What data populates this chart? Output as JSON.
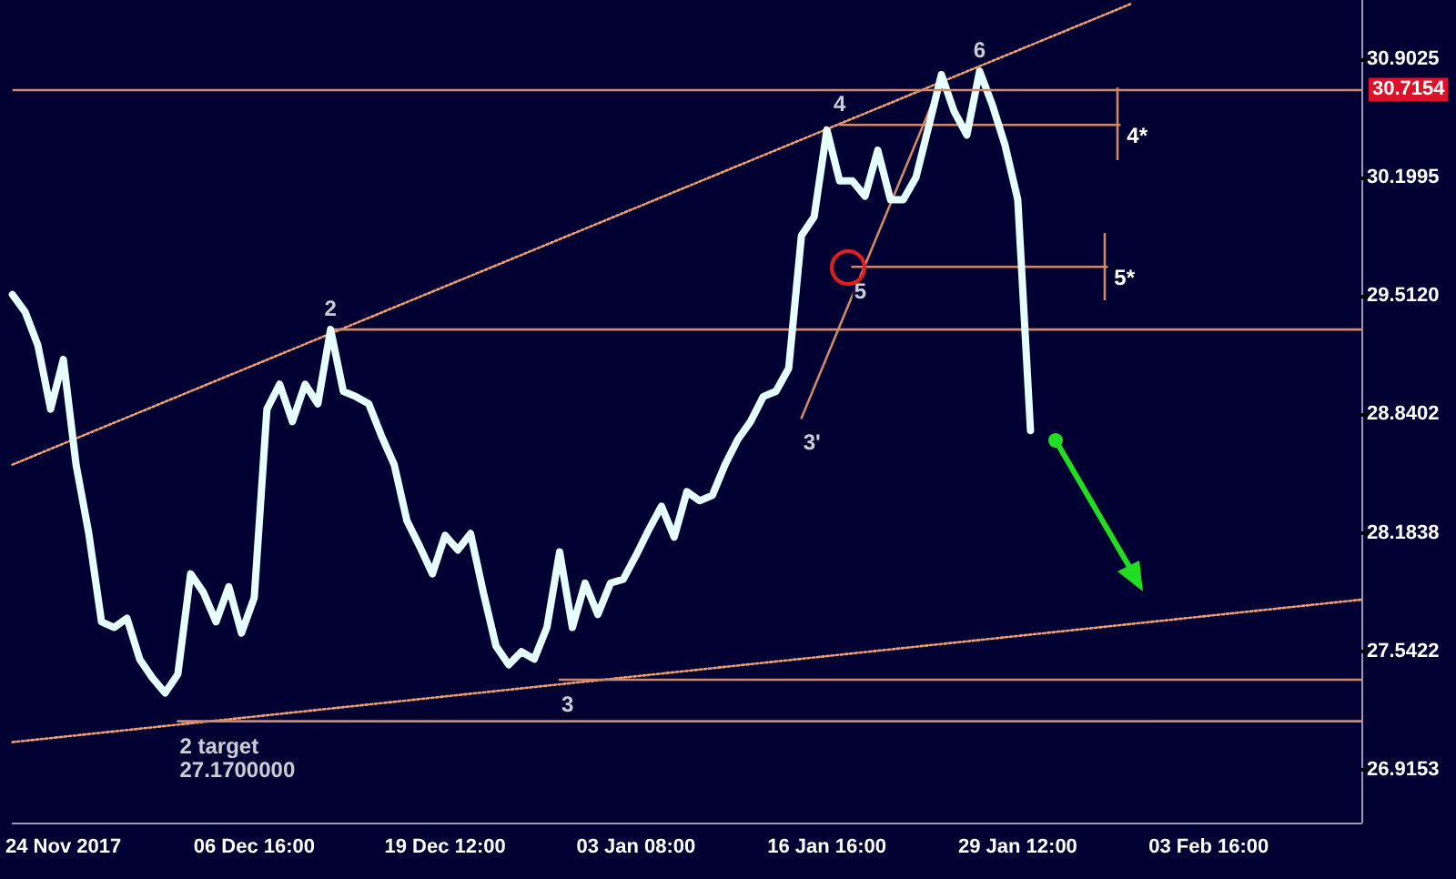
{
  "chart_data": {
    "type": "line",
    "categories": [
      null,
      null,
      null,
      null,
      "24 Nov 2017",
      null,
      null,
      null,
      null,
      null,
      null,
      null,
      null,
      null,
      null,
      null,
      null,
      null,
      null,
      "06 Dec 16:00",
      null,
      null,
      null,
      null,
      null,
      null,
      null,
      null,
      null,
      null,
      null,
      null,
      null,
      null,
      "19 Dec 12:00",
      null,
      null,
      null,
      null,
      null,
      null,
      null,
      null,
      null,
      null,
      null,
      null,
      null,
      null,
      "03 Jan 08:00",
      null,
      null,
      null,
      null,
      null,
      null,
      null,
      null,
      null,
      null,
      null,
      null,
      null,
      null,
      "16 Jan 16:00",
      null,
      null,
      null,
      null,
      null,
      null,
      null,
      null,
      null,
      null,
      null,
      null,
      null,
      null,
      "29 Jan 12:00",
      null,
      null,
      null,
      null,
      null,
      null,
      null,
      null,
      null,
      null,
      null,
      null,
      null,
      null,
      "03 Feb 16:00",
      null,
      null,
      null,
      null,
      null,
      null,
      null,
      null,
      null,
      null,
      null,
      null
    ],
    "series": [
      {
        "color": "#e6ffff",
        "values": [
          29.52,
          29.42,
          29.23,
          28.87,
          29.15,
          28.56,
          28.18,
          27.7,
          27.67,
          27.72,
          27.5,
          27.4,
          27.32,
          27.42,
          27.96,
          27.86,
          27.7,
          27.89,
          27.64,
          27.83,
          28.87,
          29.01,
          28.8,
          29.01,
          28.9,
          29.32,
          28.97,
          28.94,
          28.9,
          28.72,
          28.56,
          28.25,
          28.11,
          27.96,
          28.17,
          28.09,
          28.18,
          27.86,
          27.57,
          27.47,
          27.54,
          27.5,
          27.67,
          28.08,
          27.67,
          27.91,
          27.74,
          27.91,
          27.93,
          28.06,
          28.2,
          28.33,
          28.16,
          28.41,
          28.36,
          28.39,
          28.56,
          28.7,
          28.8,
          28.94,
          28.97,
          29.1,
          29.86,
          29.97,
          30.48,
          30.18,
          30.18,
          30.09,
          30.36,
          30.07,
          30.07,
          30.2,
          30.5,
          30.81,
          30.59,
          30.45,
          30.83,
          30.63,
          30.39,
          30.07,
          28.75,
          null,
          null,
          null,
          null,
          null,
          null,
          null,
          null,
          null,
          null,
          null,
          null,
          null,
          null,
          null,
          null,
          null,
          null,
          null,
          null,
          null,
          null,
          null,
          null,
          null,
          null
        ]
      },
      {
        "color": "#f0a070",
        "line_style": "dotted",
        "values": [
          28.56,
          null,
          null,
          null,
          null,
          null,
          null,
          null,
          null,
          null,
          null,
          null,
          null,
          null,
          null,
          null,
          null,
          null,
          null,
          null,
          null,
          null,
          null,
          null,
          null,
          null,
          null,
          null,
          null,
          null,
          null,
          null,
          null,
          null,
          null,
          null,
          null,
          null,
          null,
          null,
          null,
          null,
          null,
          null,
          null,
          null,
          null,
          null,
          null,
          null,
          null,
          null,
          null,
          null,
          null,
          null,
          null,
          null,
          null,
          null,
          null,
          null,
          null,
          null,
          null,
          null,
          null,
          null,
          null,
          null,
          null,
          null,
          null,
          null,
          null,
          null,
          null,
          null,
          null,
          null,
          null,
          null,
          null,
          null,
          null,
          null,
          null,
          null,
          31.24,
          null,
          null,
          null,
          null,
          null,
          null,
          null,
          null,
          null,
          null,
          null,
          null,
          null,
          null,
          null,
          null,
          null,
          null
        ]
      },
      {
        "color": "#f0a070",
        "line_style": "dotted",
        "values": [
          27.06,
          null,
          null,
          null,
          null,
          null,
          null,
          null,
          null,
          null,
          null,
          null,
          null,
          null,
          null,
          null,
          null,
          null,
          null,
          null,
          null,
          null,
          null,
          null,
          null,
          null,
          null,
          null,
          null,
          null,
          null,
          null,
          null,
          null,
          null,
          null,
          null,
          null,
          null,
          null,
          null,
          null,
          null,
          null,
          null,
          null,
          null,
          null,
          null,
          null,
          null,
          null,
          null,
          null,
          null,
          null,
          null,
          null,
          null,
          null,
          null,
          null,
          null,
          null,
          null,
          null,
          null,
          null,
          null,
          null,
          null,
          null,
          null,
          null,
          null,
          null,
          null,
          null,
          null,
          null,
          null,
          null,
          null,
          null,
          null,
          null,
          null,
          null,
          null,
          null,
          null,
          null,
          null,
          null,
          null,
          null,
          null,
          null,
          null,
          null,
          null,
          null,
          null,
          null,
          null,
          null,
          27.82
        ]
      },
      {
        "color": "#d08a6a",
        "values": [
          null,
          null,
          null,
          null,
          null,
          null,
          null,
          null,
          null,
          null,
          null,
          null,
          null,
          null,
          null,
          null,
          null,
          null,
          null,
          null,
          null,
          null,
          null,
          null,
          null,
          29.32,
          null,
          null,
          null,
          null,
          null,
          null,
          null,
          null,
          null,
          null,
          null,
          null,
          null,
          null,
          null,
          null,
          null,
          null,
          null,
          null,
          null,
          null,
          null,
          null,
          null,
          null,
          null,
          null,
          null,
          null,
          null,
          null,
          null,
          null,
          null,
          null,
          null,
          null,
          null,
          null,
          null,
          null,
          null,
          null,
          null,
          null,
          null,
          null,
          null,
          null,
          null,
          null,
          null,
          null,
          null,
          null,
          null,
          null,
          null,
          null,
          null,
          null,
          null,
          null,
          null,
          null,
          null,
          null,
          null,
          null,
          null,
          null,
          null,
          null,
          null,
          null,
          null,
          null,
          null,
          null,
          29.32
        ]
      },
      {
        "color": "#d08a6a",
        "values": [
          null,
          null,
          null,
          null,
          null,
          null,
          null,
          null,
          null,
          null,
          null,
          null,
          null,
          null,
          null,
          null,
          null,
          null,
          null,
          null,
          null,
          null,
          null,
          null,
          null,
          null,
          null,
          null,
          null,
          null,
          null,
          null,
          null,
          null,
          null,
          null,
          null,
          null,
          null,
          null,
          null,
          null,
          null,
          27.39,
          null,
          null,
          null,
          null,
          null,
          null,
          null,
          null,
          null,
          null,
          null,
          null,
          null,
          null,
          null,
          null,
          null,
          null,
          null,
          null,
          null,
          null,
          null,
          null,
          null,
          null,
          null,
          null,
          null,
          null,
          null,
          null,
          null,
          null,
          null,
          null,
          null,
          null,
          null,
          null,
          null,
          null,
          null,
          null,
          null,
          null,
          null,
          null,
          null,
          null,
          null,
          null,
          null,
          null,
          null,
          null,
          null,
          null,
          null,
          null,
          null,
          null,
          27.39
        ]
      },
      {
        "color": "#d08a6a",
        "values": [
          null,
          null,
          null,
          null,
          null,
          null,
          null,
          null,
          null,
          null,
          null,
          null,
          null,
          27.17,
          null,
          null,
          null,
          null,
          null,
          null,
          null,
          null,
          null,
          null,
          null,
          null,
          null,
          null,
          null,
          null,
          null,
          null,
          null,
          null,
          null,
          null,
          null,
          null,
          null,
          null,
          null,
          null,
          null,
          null,
          null,
          null,
          null,
          null,
          null,
          null,
          null,
          null,
          null,
          null,
          null,
          null,
          null,
          null,
          null,
          null,
          null,
          null,
          null,
          null,
          null,
          null,
          null,
          null,
          null,
          null,
          null,
          null,
          null,
          null,
          null,
          null,
          null,
          null,
          null,
          null,
          null,
          null,
          null,
          null,
          null,
          null,
          null,
          null,
          null,
          null,
          null,
          null,
          null,
          null,
          null,
          null,
          null,
          null,
          null,
          null,
          null,
          null,
          null,
          null,
          null,
          null,
          27.17
        ]
      },
      {
        "name": "4*",
        "color": "#d08a6a",
        "values": [
          null,
          null,
          null,
          null,
          null,
          null,
          null,
          null,
          null,
          null,
          null,
          null,
          null,
          null,
          null,
          null,
          null,
          null,
          null,
          null,
          null,
          null,
          null,
          null,
          null,
          null,
          null,
          null,
          null,
          null,
          null,
          null,
          null,
          null,
          null,
          null,
          null,
          null,
          null,
          null,
          null,
          null,
          null,
          null,
          null,
          null,
          null,
          null,
          null,
          null,
          null,
          null,
          null,
          null,
          null,
          null,
          null,
          null,
          null,
          null,
          null,
          null,
          null,
          null,
          null,
          30.51,
          null,
          null,
          null,
          null,
          null,
          null,
          null,
          null,
          null,
          null,
          null,
          null,
          null,
          null,
          null,
          null,
          null,
          null,
          null,
          null,
          null,
          30.51,
          null,
          null,
          null,
          null,
          null,
          null,
          null,
          null,
          null,
          null,
          null,
          null,
          null,
          null,
          null,
          null,
          null,
          null,
          null
        ]
      },
      {
        "name": "5*",
        "color": "#d08a6a",
        "values": [
          null,
          null,
          null,
          null,
          null,
          null,
          null,
          null,
          null,
          null,
          null,
          null,
          null,
          null,
          null,
          null,
          null,
          null,
          null,
          null,
          null,
          null,
          null,
          null,
          null,
          null,
          null,
          null,
          null,
          null,
          null,
          null,
          null,
          null,
          null,
          null,
          null,
          null,
          null,
          null,
          null,
          null,
          null,
          null,
          null,
          null,
          null,
          null,
          null,
          null,
          null,
          null,
          null,
          null,
          null,
          null,
          null,
          null,
          null,
          null,
          null,
          null,
          null,
          null,
          null,
          null,
          29.68,
          null,
          null,
          null,
          null,
          null,
          null,
          null,
          null,
          null,
          null,
          null,
          null,
          null,
          null,
          null,
          null,
          null,
          null,
          null,
          29.68,
          null,
          null,
          null,
          null,
          null,
          null,
          null,
          null,
          null,
          null,
          null,
          null,
          null,
          null,
          null,
          null,
          null,
          null,
          null,
          null
        ]
      },
      {
        "color": "#d08a6a",
        "values": [
          null,
          null,
          null,
          null,
          null,
          null,
          null,
          null,
          null,
          null,
          null,
          null,
          null,
          null,
          null,
          null,
          null,
          null,
          null,
          null,
          null,
          null,
          null,
          null,
          null,
          null,
          null,
          null,
          null,
          null,
          null,
          null,
          null,
          null,
          null,
          null,
          null,
          null,
          null,
          null,
          null,
          null,
          null,
          null,
          null,
          null,
          null,
          null,
          null,
          null,
          null,
          null,
          null,
          null,
          null,
          null,
          null,
          null,
          null,
          null,
          null,
          null,
          28.82,
          null,
          null,
          null,
          null,
          null,
          null,
          null,
          null,
          null,
          null,
          30.77,
          null,
          null,
          null,
          null,
          null,
          null,
          null,
          null,
          null,
          null,
          null,
          null,
          null,
          null,
          null,
          null,
          null,
          null,
          null,
          null,
          null,
          null,
          null,
          null,
          null,
          null,
          null,
          null,
          null,
          null,
          null,
          null,
          null
        ]
      }
    ],
    "ylim": [
      26.64,
      31.26
    ],
    "yticks": [
      26.9153,
      27.5422,
      28.1838,
      28.8402,
      {
        "value": 29.512,
        "label": "29.5120"
      },
      30.1995,
      30.9025
    ],
    "log": "y",
    "grid": false,
    "ref_lines": [
      {
        "axis": "y",
        "value": 30.7154,
        "label": "30.7154",
        "color": "#d08a6a"
      }
    ],
    "annotations": [
      {
        "text": "2",
        "y": 29.32
      },
      {
        "text": "3",
        "y": 27.39
      },
      {
        "text": "3'",
        "y": 28.82
      },
      {
        "text": "4",
        "y": 30.51
      },
      {
        "text": "5",
        "y": 29.68
      },
      {
        "text": "6",
        "y": 30.83
      },
      {
        "text": "2 target\n27.1700000",
        "y": 27.17
      }
    ]
  }
}
